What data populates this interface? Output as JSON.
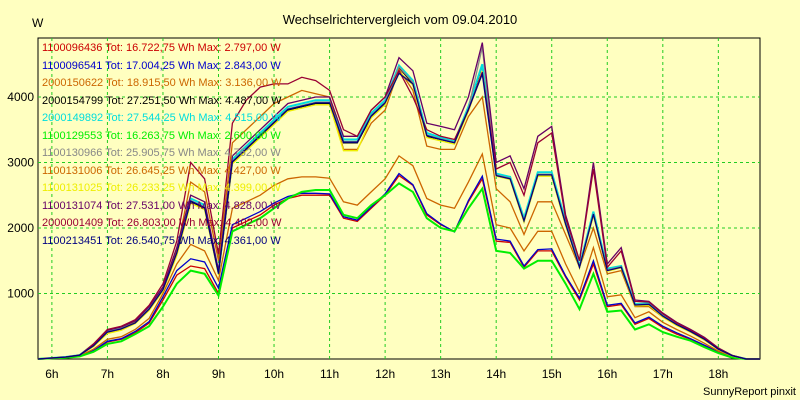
{
  "chart_data": {
    "type": "line",
    "title": "Wechselrichtervergleich vom 09.04.2010",
    "ylabel": "W",
    "footer": "SunnyReport pinxit",
    "ylim": [
      0,
      4900
    ],
    "yticks": [
      1000,
      2000,
      3000,
      4000
    ],
    "xlim": [
      5.75,
      18.75
    ],
    "xticks": [
      "6h",
      "7h",
      "8h",
      "9h",
      "10h",
      "11h",
      "12h",
      "13h",
      "14h",
      "15h",
      "16h",
      "17h",
      "18h"
    ],
    "grid": true,
    "legend_position": "top-left",
    "x": [
      5.75,
      6.0,
      6.25,
      6.5,
      6.75,
      7.0,
      7.25,
      7.5,
      7.75,
      8.0,
      8.25,
      8.5,
      8.75,
      9.0,
      9.25,
      9.5,
      9.75,
      10.0,
      10.25,
      10.5,
      10.75,
      11.0,
      11.25,
      11.5,
      11.75,
      12.0,
      12.25,
      12.5,
      12.75,
      13.0,
      13.25,
      13.5,
      13.75,
      14.0,
      14.25,
      14.5,
      14.75,
      15.0,
      15.25,
      15.5,
      15.75,
      16.0,
      16.25,
      16.5,
      16.75,
      17.0,
      17.25,
      17.5,
      17.75,
      18.0,
      18.25,
      18.5,
      18.75
    ],
    "series": [
      {
        "name": "1100096436",
        "label": "1100096436 Tot: 16.722,75 Wh Max: 2.797,00 W",
        "color": "#cc0000",
        "values": [
          0,
          10,
          20,
          40,
          120,
          260,
          300,
          400,
          550,
          900,
          1280,
          1420,
          1380,
          1000,
          2000,
          2100,
          2200,
          2350,
          2450,
          2500,
          2500,
          2500,
          2150,
          2100,
          2300,
          2500,
          2800,
          2650,
          2200,
          2050,
          1950,
          2400,
          2750,
          1800,
          1780,
          1400,
          1650,
          1650,
          1250,
          900,
          1450,
          800,
          830,
          530,
          620,
          480,
          380,
          300,
          200,
          100,
          30,
          0,
          0
        ]
      },
      {
        "name": "1100096541",
        "label": "1100096541 Tot: 17.004,25 Wh Max: 2.843,00 W",
        "color": "#0000cc",
        "values": [
          0,
          10,
          20,
          40,
          130,
          270,
          310,
          420,
          570,
          950,
          1350,
          1530,
          1480,
          1080,
          2050,
          2150,
          2250,
          2380,
          2480,
          2530,
          2530,
          2520,
          2170,
          2120,
          2320,
          2520,
          2830,
          2660,
          2220,
          2060,
          1940,
          2420,
          2790,
          1830,
          1800,
          1420,
          1670,
          1680,
          1270,
          930,
          1500,
          820,
          850,
          550,
          640,
          500,
          400,
          310,
          210,
          110,
          40,
          0,
          0
        ]
      },
      {
        "name": "2000150622",
        "label": "2000150622 Tot: 18.915,50 Wh Max: 3.136,00 W",
        "color": "#cc6600",
        "values": [
          0,
          10,
          20,
          50,
          150,
          300,
          340,
          450,
          620,
          1000,
          1450,
          1750,
          1650,
          1200,
          2300,
          2400,
          2500,
          2650,
          2750,
          2780,
          2780,
          2760,
          2400,
          2350,
          2550,
          2750,
          3100,
          2950,
          2450,
          2350,
          2300,
          2700,
          3130,
          2050,
          2000,
          1650,
          1950,
          1950,
          1450,
          1020,
          1700,
          950,
          980,
          630,
          720,
          560,
          450,
          350,
          240,
          120,
          40,
          0,
          0
        ]
      },
      {
        "name": "2000154799",
        "label": "2000154799 Tot: 27.251,50 Wh Max: 4.487,00 W",
        "color": "#000000",
        "values": [
          0,
          15,
          30,
          60,
          200,
          400,
          450,
          550,
          750,
          1050,
          1600,
          2400,
          2300,
          1300,
          3000,
          3200,
          3400,
          3600,
          3800,
          3850,
          3900,
          3900,
          3300,
          3300,
          3700,
          3900,
          4450,
          4200,
          3400,
          3350,
          3300,
          3800,
          4480,
          2800,
          2750,
          2100,
          2800,
          2800,
          2050,
          1400,
          2200,
          1350,
          1400,
          820,
          830,
          650,
          520,
          420,
          300,
          150,
          50,
          0,
          0
        ]
      },
      {
        "name": "2000149892",
        "label": "2000149892 Tot: 27.544,25 Wh Max: 4.515,00 W",
        "color": "#00dddd",
        "values": [
          0,
          15,
          30,
          60,
          220,
          430,
          480,
          570,
          780,
          1080,
          1650,
          2450,
          2350,
          1330,
          3050,
          3250,
          3450,
          3650,
          3850,
          3900,
          3950,
          3950,
          3350,
          3350,
          3750,
          3950,
          4480,
          4250,
          3450,
          3380,
          3320,
          3850,
          4500,
          2830,
          2780,
          2150,
          2850,
          2850,
          2100,
          1420,
          2250,
          1380,
          1420,
          840,
          850,
          670,
          540,
          430,
          310,
          160,
          50,
          0,
          0
        ]
      },
      {
        "name": "1100129553",
        "label": "1100129553 Tot: 16.263,75 Wh Max: 2.600,00 W",
        "color": "#00ee00",
        "values": [
          0,
          10,
          20,
          40,
          110,
          230,
          270,
          380,
          500,
          800,
          1150,
          1350,
          1300,
          970,
          1950,
          2050,
          2150,
          2300,
          2450,
          2550,
          2580,
          2580,
          2200,
          2150,
          2350,
          2500,
          2680,
          2550,
          2150,
          2000,
          1950,
          2300,
          2600,
          1650,
          1620,
          1380,
          1500,
          1500,
          1150,
          760,
          1300,
          720,
          740,
          450,
          530,
          410,
          340,
          280,
          180,
          90,
          20,
          0,
          0
        ]
      },
      {
        "name": "1100130966",
        "label": "1100130966 Tot: 25.905,75 Wh Max: 4.762,00 W",
        "color": "#888888",
        "values": [
          0,
          15,
          30,
          60,
          210,
          420,
          470,
          560,
          770,
          1070,
          1630,
          2420,
          2320,
          1310,
          3020,
          3220,
          3420,
          3620,
          3820,
          3870,
          3920,
          3920,
          3320,
          3320,
          3720,
          3920,
          4460,
          4220,
          3420,
          3360,
          3310,
          3820,
          4760,
          2810,
          2760,
          2120,
          2820,
          2820,
          2070,
          1410,
          2220,
          1360,
          1410,
          830,
          840,
          660,
          530,
          425,
          305,
          155,
          50,
          0,
          0
        ]
      },
      {
        "name": "1100131006",
        "label": "1100131006 Tot: 26.645,25 Wh Max: 4.427,00 W",
        "color": "#cc6600",
        "values": [
          0,
          15,
          30,
          60,
          200,
          400,
          460,
          560,
          760,
          1060,
          1650,
          2700,
          2550,
          1500,
          3300,
          3500,
          3700,
          3900,
          4000,
          4100,
          4050,
          4000,
          3200,
          3200,
          3600,
          3800,
          4420,
          4100,
          3250,
          3200,
          3200,
          3700,
          4000,
          2600,
          2400,
          1900,
          2400,
          2400,
          1900,
          1400,
          2000,
          1300,
          1350,
          800,
          800,
          640,
          520,
          410,
          290,
          150,
          50,
          0,
          0
        ]
      },
      {
        "name": "1100131025",
        "label": "1100131025 Tot: 26.233,25 Wh Max: 4.399,00 W",
        "color": "#eeee00",
        "values": [
          0,
          15,
          30,
          60,
          190,
          390,
          440,
          540,
          740,
          1040,
          1580,
          2380,
          2280,
          1290,
          2980,
          3180,
          3380,
          3580,
          3780,
          3830,
          3880,
          3880,
          3180,
          3180,
          3680,
          3880,
          4390,
          4180,
          3380,
          3330,
          3280,
          3780,
          4390,
          2790,
          2740,
          2090,
          2790,
          2790,
          2040,
          1390,
          2190,
          1340,
          1390,
          810,
          820,
          640,
          510,
          410,
          290,
          145,
          45,
          0,
          0
        ]
      },
      {
        "name": "1100131074",
        "label": "1100131074 Tot: 27.531,00 Wh Max: 4.828,00 W",
        "color": "#660066",
        "values": [
          0,
          15,
          30,
          60,
          220,
          440,
          490,
          580,
          800,
          1100,
          1700,
          2500,
          2400,
          1350,
          3100,
          3300,
          3500,
          3700,
          3900,
          3950,
          4000,
          4000,
          3400,
          3400,
          3800,
          4000,
          4600,
          4400,
          3600,
          3550,
          3500,
          4000,
          4830,
          3000,
          3100,
          2600,
          3400,
          3550,
          2200,
          1500,
          3000,
          1450,
          1700,
          900,
          880,
          700,
          560,
          450,
          330,
          170,
          55,
          0,
          0
        ]
      },
      {
        "name": "2000001409",
        "label": "2000001409 Tot: 26.803,00 Wh Max: 4.402,00 W",
        "color": "#990033",
        "values": [
          0,
          15,
          30,
          60,
          230,
          450,
          500,
          600,
          820,
          1150,
          1800,
          3000,
          2750,
          1600,
          3600,
          3950,
          4150,
          4200,
          4200,
          4300,
          4250,
          4100,
          3500,
          3400,
          3800,
          4000,
          4400,
          4000,
          3500,
          3400,
          3350,
          3800,
          4380,
          2900,
          3000,
          2500,
          3300,
          3450,
          2150,
          1500,
          2900,
          1400,
          1650,
          880,
          870,
          690,
          550,
          440,
          320,
          165,
          55,
          0,
          0
        ]
      },
      {
        "name": "1100213451",
        "label": "1100213451 Tot: 26.540,75 Wh Max: 4.361,00 W",
        "color": "#000080",
        "values": [
          0,
          15,
          30,
          60,
          200,
          410,
          460,
          550,
          760,
          1060,
          1620,
          2410,
          2310,
          1300,
          3010,
          3210,
          3410,
          3610,
          3810,
          3860,
          3910,
          3910,
          3310,
          3310,
          3710,
          3910,
          4360,
          4200,
          3410,
          3350,
          3300,
          3810,
          4350,
          2800,
          2750,
          2110,
          2810,
          2810,
          2060,
          1400,
          2210,
          1350,
          1400,
          825,
          835,
          655,
          525,
          420,
          300,
          150,
          50,
          0,
          0
        ]
      }
    ]
  }
}
